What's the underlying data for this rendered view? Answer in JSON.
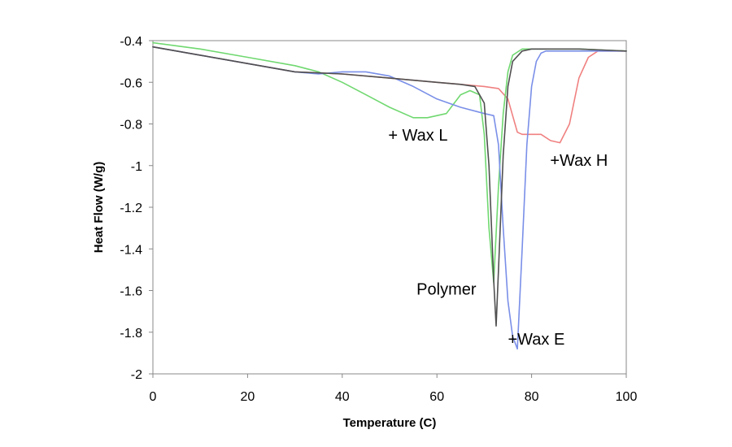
{
  "chart_data": {
    "type": "line",
    "title": "",
    "xlabel": "Temperature (C)",
    "ylabel": "Heat Flow (W/g)",
    "xlim": [
      0,
      100
    ],
    "ylim": [
      -2,
      -0.4
    ],
    "xticks": [
      0,
      20,
      40,
      60,
      80,
      100
    ],
    "yticks": [
      -2,
      -1.8,
      -1.6,
      -1.4,
      -1.2,
      -1,
      -0.8,
      -0.6,
      -0.4
    ],
    "xtick_labels": [
      "0",
      "20",
      "40",
      "60",
      "80",
      "100"
    ],
    "ytick_labels": [
      "-2",
      "-1.8",
      "-1.6",
      "-1.4",
      "-1.2",
      "-1",
      "-0.8",
      "-0.6",
      "-0.4"
    ],
    "grid": false,
    "series": [
      {
        "name": "+Wax H",
        "color": "#f08080",
        "x": [
          0,
          10,
          20,
          30,
          40,
          50,
          60,
          65,
          70,
          73,
          75,
          76,
          77,
          78,
          80,
          82,
          84,
          86,
          88,
          90,
          92,
          94,
          96,
          100
        ],
        "y": [
          -0.43,
          -0.47,
          -0.51,
          -0.55,
          -0.56,
          -0.58,
          -0.6,
          -0.61,
          -0.62,
          -0.63,
          -0.68,
          -0.76,
          -0.84,
          -0.85,
          -0.85,
          -0.85,
          -0.88,
          -0.89,
          -0.8,
          -0.58,
          -0.48,
          -0.45,
          -0.45,
          -0.45
        ]
      },
      {
        "name": "+ Wax L",
        "color": "#70d870",
        "x": [
          0,
          10,
          20,
          30,
          35,
          40,
          45,
          50,
          55,
          58,
          62,
          65,
          67,
          69,
          70,
          71,
          72,
          73,
          74,
          75,
          76,
          78,
          80,
          85,
          90,
          100
        ],
        "y": [
          -0.41,
          -0.44,
          -0.48,
          -0.52,
          -0.55,
          -0.6,
          -0.66,
          -0.72,
          -0.77,
          -0.77,
          -0.75,
          -0.66,
          -0.64,
          -0.66,
          -0.85,
          -1.3,
          -1.56,
          -1.1,
          -0.75,
          -0.55,
          -0.47,
          -0.44,
          -0.44,
          -0.44,
          -0.44,
          -0.45
        ]
      },
      {
        "name": "+Wax E",
        "color": "#7a8fe8",
        "x": [
          0,
          10,
          20,
          30,
          35,
          40,
          45,
          50,
          55,
          60,
          65,
          70,
          72,
          73,
          74,
          75,
          76,
          77,
          78,
          79,
          80,
          81,
          82,
          83,
          84,
          85,
          90,
          100
        ],
        "y": [
          -0.43,
          -0.47,
          -0.51,
          -0.55,
          -0.56,
          -0.55,
          -0.55,
          -0.57,
          -0.62,
          -0.68,
          -0.72,
          -0.75,
          -0.76,
          -0.9,
          -1.3,
          -1.65,
          -1.82,
          -1.88,
          -1.4,
          -0.9,
          -0.62,
          -0.5,
          -0.46,
          -0.45,
          -0.45,
          -0.45,
          -0.45,
          -0.45
        ]
      },
      {
        "name": "Polymer",
        "color": "#505050",
        "x": [
          0,
          10,
          20,
          30,
          40,
          50,
          55,
          60,
          65,
          68,
          70,
          71,
          72,
          72.5,
          73,
          74,
          75,
          76,
          78,
          80,
          85,
          90,
          100
        ],
        "y": [
          -0.43,
          -0.47,
          -0.51,
          -0.55,
          -0.56,
          -0.58,
          -0.59,
          -0.6,
          -0.61,
          -0.62,
          -0.7,
          -1.0,
          -1.55,
          -1.77,
          -1.5,
          -0.95,
          -0.62,
          -0.5,
          -0.45,
          -0.44,
          -0.44,
          -0.44,
          -0.45
        ]
      }
    ],
    "annotations": [
      {
        "text": "+ Wax L",
        "x": 56,
        "y": -0.88
      },
      {
        "text": "+Wax H",
        "x": 90,
        "y": -1.0
      },
      {
        "text": "Polymer",
        "x": 62,
        "y": -1.62
      },
      {
        "text": "+Wax E",
        "x": 81,
        "y": -1.86
      }
    ]
  }
}
